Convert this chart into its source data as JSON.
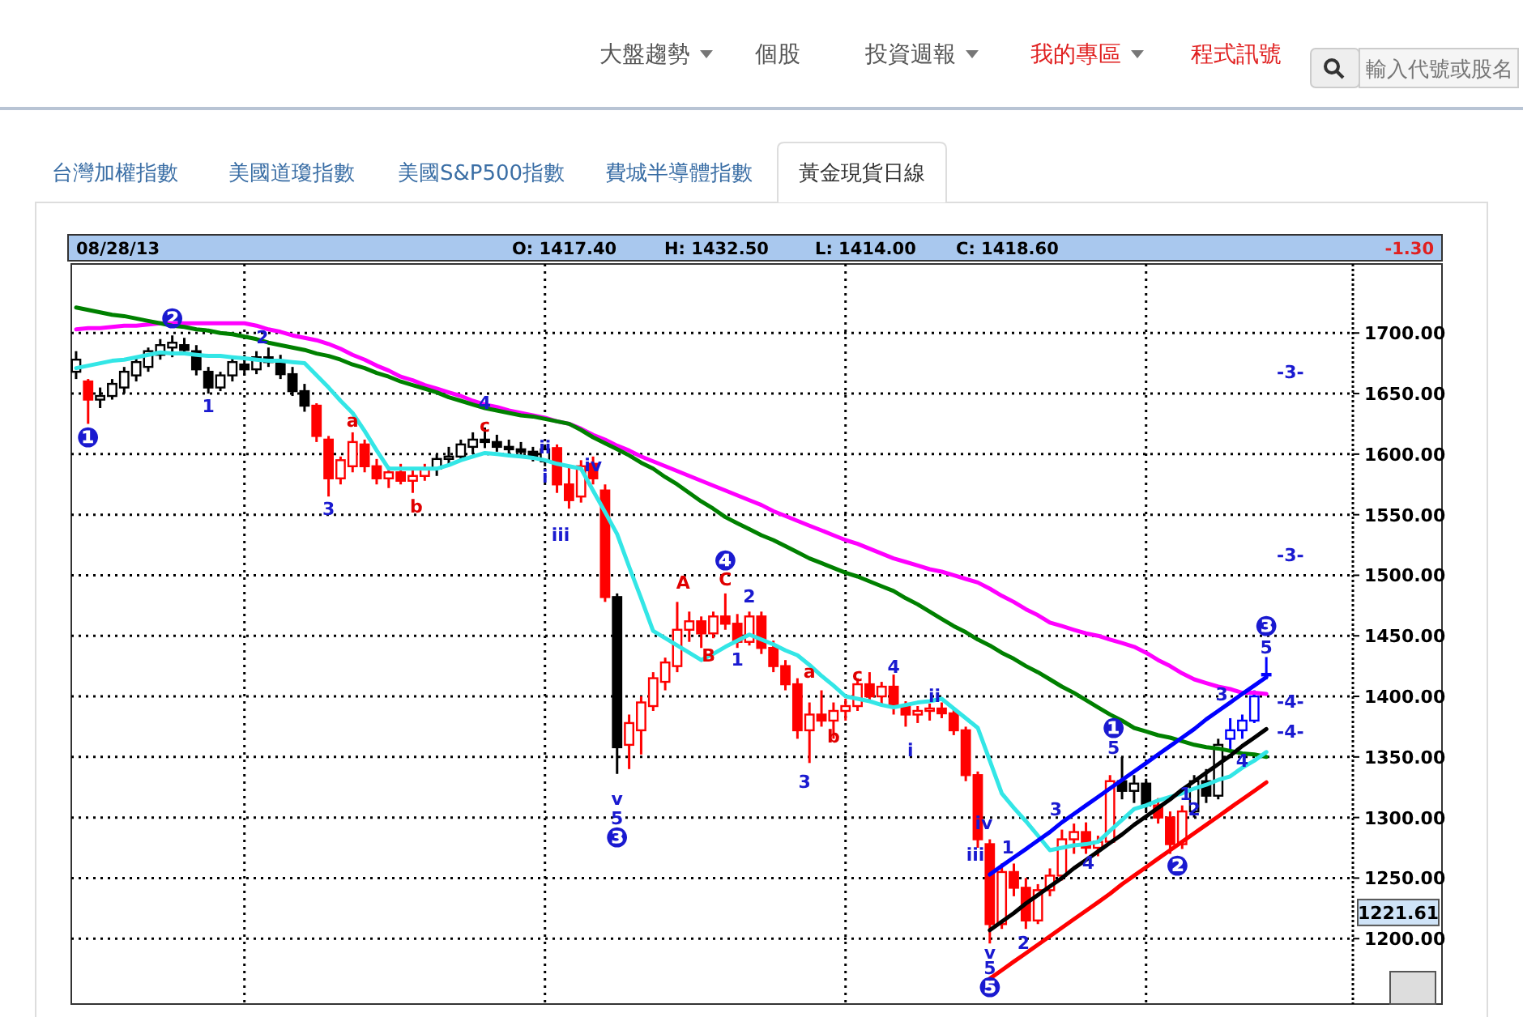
{
  "chart_data": {
    "type": "candlestick",
    "title": "黃金現貨日線",
    "annotations": [
      "大盤趨勢",
      "個股",
      "投資週報",
      "我的專區",
      "程式訊號",
      "輸入代號或股名",
      "台灣加權指數",
      "美國道瓊指數",
      "美國S&P500指數",
      "費城半導體指數",
      "08/28/13",
      "O: 1417.40",
      "H: 1432.50",
      "L: 1414.00",
      "C: 1418.60",
      "-1.30",
      "1221.61",
      "❶",
      "❷",
      "1",
      "2",
      "3",
      "a",
      "b",
      "c",
      "4",
      "i",
      "ii",
      "iii",
      "iv",
      "v",
      "5",
      "❸",
      "A",
      "B",
      "C",
      "❹",
      "1",
      "2",
      "3",
      "a",
      "b",
      "c",
      "4",
      "i",
      "ii",
      "iii",
      "iv",
      "v",
      "5",
      "❺",
      "1",
      "2",
      "3",
      "4",
      "5",
      "❶",
      "❷",
      "1",
      "2",
      "3",
      "4",
      "5",
      "❸",
      "-4-",
      "-4-",
      "-3-",
      "-3-"
    ],
    "categories": [
      null,
      null,
      null,
      null,
      null,
      null,
      null,
      null,
      null,
      null,
      null,
      null,
      null,
      null,
      null,
      null,
      null,
      null,
      null,
      null,
      null,
      null,
      null,
      null,
      null,
      null,
      null,
      null,
      null,
      null,
      null,
      null,
      null,
      null,
      null,
      null,
      null,
      null,
      null,
      null,
      null,
      null,
      null,
      null,
      null,
      null,
      null,
      null,
      null,
      null,
      null,
      null,
      null,
      null,
      null,
      null,
      null,
      null,
      null,
      null,
      null,
      null,
      null,
      null,
      null,
      null,
      null,
      null,
      null,
      null,
      null,
      null,
      null,
      null,
      null,
      null,
      null,
      null,
      null,
      null,
      null,
      null,
      null,
      null,
      null,
      null,
      null,
      null,
      null,
      null,
      null,
      null,
      null,
      null,
      null,
      null,
      null,
      null,
      null,
      null
    ],
    "ohlc": [
      [
        1668,
        1685,
        1662,
        1678
      ],
      [
        1660,
        1662,
        1625,
        1645
      ],
      [
        1645,
        1655,
        1638,
        1648
      ],
      [
        1648,
        1662,
        1645,
        1658
      ],
      [
        1655,
        1672,
        1650,
        1668
      ],
      [
        1665,
        1680,
        1660,
        1676
      ],
      [
        1672,
        1688,
        1668,
        1685
      ],
      [
        1682,
        1695,
        1678,
        1690
      ],
      [
        1688,
        1698,
        1680,
        1692
      ],
      [
        1690,
        1696,
        1682,
        1686
      ],
      [
        1685,
        1690,
        1665,
        1670
      ],
      [
        1668,
        1672,
        1650,
        1655
      ],
      [
        1655,
        1668,
        1652,
        1665
      ],
      [
        1665,
        1680,
        1660,
        1676
      ],
      [
        1674,
        1682,
        1665,
        1670
      ],
      [
        1670,
        1685,
        1666,
        1680
      ],
      [
        1680,
        1688,
        1672,
        1676
      ],
      [
        1676,
        1682,
        1662,
        1666
      ],
      [
        1666,
        1672,
        1648,
        1652
      ],
      [
        1652,
        1658,
        1635,
        1640
      ],
      [
        1640,
        1642,
        1610,
        1615
      ],
      [
        1612,
        1615,
        1565,
        1580
      ],
      [
        1580,
        1598,
        1575,
        1595
      ],
      [
        1590,
        1618,
        1585,
        1610
      ],
      [
        1608,
        1612,
        1585,
        1590
      ],
      [
        1590,
        1596,
        1575,
        1580
      ],
      [
        1580,
        1590,
        1572,
        1585
      ],
      [
        1585,
        1592,
        1575,
        1578
      ],
      [
        1578,
        1588,
        1568,
        1582
      ],
      [
        1582,
        1592,
        1578,
        1588
      ],
      [
        1588,
        1600,
        1582,
        1596
      ],
      [
        1596,
        1606,
        1590,
        1598
      ],
      [
        1598,
        1612,
        1594,
        1608
      ],
      [
        1606,
        1618,
        1600,
        1612
      ],
      [
        1612,
        1622,
        1605,
        1610
      ],
      [
        1610,
        1616,
        1602,
        1606
      ],
      [
        1606,
        1612,
        1598,
        1604
      ],
      [
        1604,
        1610,
        1598,
        1602
      ],
      [
        1602,
        1606,
        1594,
        1598
      ],
      [
        1594,
        1608,
        1590,
        1604
      ],
      [
        1605,
        1608,
        1568,
        1575
      ],
      [
        1575,
        1590,
        1555,
        1562
      ],
      [
        1565,
        1595,
        1560,
        1590
      ],
      [
        1592,
        1598,
        1575,
        1580
      ],
      [
        1570,
        1575,
        1478,
        1482
      ],
      [
        1482,
        1485,
        1336,
        1358
      ],
      [
        1360,
        1385,
        1340,
        1378
      ],
      [
        1372,
        1400,
        1352,
        1395
      ],
      [
        1392,
        1420,
        1388,
        1415
      ],
      [
        1412,
        1432,
        1405,
        1428
      ],
      [
        1425,
        1478,
        1420,
        1455
      ],
      [
        1455,
        1470,
        1445,
        1462
      ],
      [
        1462,
        1466,
        1440,
        1452
      ],
      [
        1452,
        1470,
        1448,
        1466
      ],
      [
        1466,
        1485,
        1455,
        1460
      ],
      [
        1460,
        1468,
        1440,
        1445
      ],
      [
        1445,
        1470,
        1442,
        1466
      ],
      [
        1466,
        1470,
        1435,
        1440
      ],
      [
        1440,
        1446,
        1420,
        1425
      ],
      [
        1425,
        1430,
        1405,
        1410
      ],
      [
        1410,
        1415,
        1365,
        1372
      ],
      [
        1372,
        1395,
        1345,
        1385
      ],
      [
        1385,
        1405,
        1375,
        1380
      ],
      [
        1380,
        1395,
        1365,
        1388
      ],
      [
        1388,
        1398,
        1380,
        1392
      ],
      [
        1392,
        1415,
        1388,
        1410
      ],
      [
        1410,
        1420,
        1395,
        1400
      ],
      [
        1400,
        1412,
        1392,
        1408
      ],
      [
        1408,
        1418,
        1385,
        1392
      ],
      [
        1392,
        1396,
        1375,
        1385
      ],
      [
        1385,
        1392,
        1378,
        1388
      ],
      [
        1388,
        1394,
        1380,
        1390
      ],
      [
        1390,
        1395,
        1382,
        1386
      ],
      [
        1386,
        1390,
        1368,
        1372
      ],
      [
        1372,
        1375,
        1330,
        1335
      ],
      [
        1335,
        1338,
        1275,
        1282
      ],
      [
        1278,
        1282,
        1196,
        1212
      ],
      [
        1212,
        1262,
        1208,
        1255
      ],
      [
        1255,
        1262,
        1235,
        1242
      ],
      [
        1242,
        1250,
        1208,
        1215
      ],
      [
        1215,
        1245,
        1212,
        1240
      ],
      [
        1240,
        1258,
        1235,
        1252
      ],
      [
        1252,
        1290,
        1248,
        1282
      ],
      [
        1282,
        1295,
        1270,
        1288
      ],
      [
        1288,
        1296,
        1270,
        1275
      ],
      [
        1275,
        1285,
        1268,
        1280
      ],
      [
        1280,
        1335,
        1278,
        1330
      ],
      [
        1330,
        1350,
        1315,
        1322
      ],
      [
        1322,
        1335,
        1312,
        1328
      ],
      [
        1328,
        1332,
        1305,
        1310
      ],
      [
        1310,
        1316,
        1295,
        1300
      ],
      [
        1300,
        1305,
        1270,
        1278
      ],
      [
        1278,
        1310,
        1274,
        1305
      ],
      [
        1305,
        1335,
        1300,
        1330
      ],
      [
        1330,
        1340,
        1312,
        1318
      ],
      [
        1318,
        1365,
        1315,
        1360
      ],
      [
        1365,
        1382,
        1355,
        1372
      ],
      [
        1372,
        1385,
        1365,
        1380
      ],
      [
        1380,
        1405,
        1378,
        1400
      ],
      [
        1417.4,
        1432.5,
        1414,
        1418.6
      ]
    ],
    "colors": [
      "#000000",
      "#ff0000",
      "#000000",
      "#000000",
      "#000000",
      "#000000",
      "#000000",
      "#000000",
      "#000000",
      "#000000",
      "#000000",
      "#000000",
      "#000000",
      "#000000",
      "#000000",
      "#000000",
      "#000000",
      "#000000",
      "#000000",
      "#000000",
      "#ff0000",
      "#ff0000",
      "#ff0000",
      "#ff0000",
      "#ff0000",
      "#ff0000",
      "#ff0000",
      "#ff0000",
      "#ff0000",
      "#ff0000",
      "#000000",
      "#000000",
      "#000000",
      "#000000",
      "#000000",
      "#000000",
      "#000000",
      "#000000",
      "#000000",
      "#000000",
      "#ff0000",
      "#ff0000",
      "#ff0000",
      "#ff0000",
      "#ff0000",
      "#000000",
      "#ff0000",
      "#ff0000",
      "#ff0000",
      "#ff0000",
      "#ff0000",
      "#ff0000",
      "#ff0000",
      "#ff0000",
      "#ff0000",
      "#ff0000",
      "#ff0000",
      "#ff0000",
      "#ff0000",
      "#ff0000",
      "#ff0000",
      "#ff0000",
      "#ff0000",
      "#ff0000",
      "#ff0000",
      "#ff0000",
      "#ff0000",
      "#ff0000",
      "#ff0000",
      "#ff0000",
      "#ff0000",
      "#ff0000",
      "#ff0000",
      "#ff0000",
      "#ff0000",
      "#ff0000",
      "#ff0000",
      "#ff0000",
      "#ff0000",
      "#ff0000",
      "#ff0000",
      "#ff0000",
      "#ff0000",
      "#ff0000",
      "#ff0000",
      "#ff0000",
      "#ff0000",
      "#000000",
      "#000000",
      "#000000",
      "#ff0000",
      "#ff0000",
      "#ff0000",
      "#000000",
      "#000000",
      "#000000",
      "#0000ff",
      "#0000ff",
      "#0000ff",
      "#0000ff"
    ],
    "series": [
      {
        "type": "line",
        "color": "#ff00ff",
        "values": [
          1703,
          1704,
          1704,
          1705,
          1706,
          1706,
          1707,
          1708,
          1708,
          1708,
          1708,
          1708,
          1708,
          1708,
          1708,
          1706,
          1703,
          1701,
          1698,
          1696,
          1694,
          1691,
          1687,
          1682,
          1678,
          1673,
          1669,
          1664,
          1661,
          1657,
          1654,
          1651,
          1648,
          1644,
          1641,
          1639,
          1636,
          1634,
          1632,
          1630,
          1627,
          1625,
          1621,
          1616,
          1612,
          1607,
          1603,
          1598,
          1594,
          1590,
          1586,
          1582,
          1578,
          1574,
          1570,
          1566,
          1562,
          1558,
          1553,
          1549,
          1545,
          1541,
          1537,
          1533,
          1529,
          1526,
          1522,
          1518,
          1514,
          1511,
          1508,
          1505,
          1503,
          1500,
          1497,
          1494,
          1489,
          1483,
          1478,
          1472,
          1467,
          1461,
          1458,
          1455,
          1452,
          1450,
          1447,
          1444,
          1441,
          1436,
          1430,
          1425,
          1419,
          1414,
          1411,
          1408,
          1406,
          1403,
          1403,
          1402
        ]
      },
      {
        "type": "line",
        "color": "#008000",
        "values": [
          1721,
          1719,
          1717,
          1715,
          1714,
          1712,
          1710,
          1708,
          1706,
          1705,
          1703,
          1702,
          1700,
          1699,
          1697,
          1695,
          1692,
          1690,
          1688,
          1686,
          1683,
          1681,
          1678,
          1674,
          1671,
          1667,
          1664,
          1660,
          1657,
          1654,
          1651,
          1647,
          1644,
          1641,
          1638,
          1636,
          1634,
          1632,
          1631,
          1629,
          1627,
          1625,
          1620,
          1614,
          1609,
          1604,
          1599,
          1593,
          1588,
          1581,
          1575,
          1568,
          1561,
          1555,
          1548,
          1543,
          1538,
          1533,
          1529,
          1524,
          1519,
          1514,
          1510,
          1506,
          1502,
          1499,
          1495,
          1491,
          1487,
          1481,
          1476,
          1470,
          1464,
          1458,
          1453,
          1447,
          1442,
          1436,
          1431,
          1425,
          1420,
          1414,
          1408,
          1403,
          1397,
          1391,
          1385,
          1380,
          1374,
          1371,
          1368,
          1366,
          1363,
          1360,
          1358,
          1357,
          1355,
          1353,
          1352,
          1350
        ]
      },
      {
        "type": "line",
        "color": "#33e6e6",
        "values": [
          1671,
          1673,
          1675,
          1677,
          1678,
          1680,
          1682,
          1684,
          1683,
          1683,
          1682,
          1681,
          1681,
          1680,
          1679,
          1678,
          1677,
          1677,
          1676,
          1675,
          1665,
          1655,
          1644,
          1634,
          1619,
          1603,
          1588,
          1588,
          1588,
          1588,
          1588,
          1591,
          1595,
          1598,
          1601,
          1600,
          1599,
          1598,
          1597,
          1595,
          1592,
          1590,
          1588,
          1570,
          1552,
          1534,
          1507,
          1481,
          1454,
          1448,
          1442,
          1436,
          1430,
          1435,
          1441,
          1446,
          1451,
          1447,
          1443,
          1438,
          1434,
          1426,
          1417,
          1409,
          1400,
          1398,
          1396,
          1393,
          1391,
          1393,
          1395,
          1396,
          1398,
          1390,
          1382,
          1374,
          1347,
          1320,
          1308,
          1297,
          1285,
          1273,
          1275,
          1277,
          1278,
          1280,
          1289,
          1298,
          1307,
          1310,
          1314,
          1317,
          1320,
          1324,
          1327,
          1331,
          1334,
          1341,
          1347,
          1354
        ]
      },
      {
        "type": "line",
        "color": "#0000ff",
        "values": [
          null,
          null,
          null,
          null,
          null,
          null,
          null,
          null,
          null,
          null,
          null,
          null,
          null,
          null,
          null,
          null,
          null,
          null,
          null,
          null,
          null,
          null,
          null,
          null,
          null,
          null,
          null,
          null,
          null,
          null,
          null,
          null,
          null,
          null,
          null,
          null,
          null,
          null,
          null,
          null,
          null,
          null,
          null,
          null,
          null,
          null,
          null,
          null,
          null,
          null,
          null,
          null,
          null,
          null,
          null,
          null,
          null,
          null,
          null,
          null,
          null,
          null,
          null,
          null,
          null,
          null,
          null,
          null,
          null,
          null,
          null,
          null,
          null,
          null,
          null,
          null,
          1253,
          1260,
          1267,
          1274,
          1281,
          1288,
          1296,
          1303,
          1310,
          1317,
          1324,
          1331,
          1338,
          1345,
          1352,
          1359,
          1366,
          1373,
          1381,
          1388,
          1395,
          1402,
          1409,
          1416
        ]
      },
      {
        "type": "line",
        "color": "#000000",
        "values": [
          null,
          null,
          null,
          null,
          null,
          null,
          null,
          null,
          null,
          null,
          null,
          null,
          null,
          null,
          null,
          null,
          null,
          null,
          null,
          null,
          null,
          null,
          null,
          null,
          null,
          null,
          null,
          null,
          null,
          null,
          null,
          null,
          null,
          null,
          null,
          null,
          null,
          null,
          null,
          null,
          null,
          null,
          null,
          null,
          null,
          null,
          null,
          null,
          null,
          null,
          null,
          null,
          null,
          null,
          null,
          null,
          null,
          null,
          null,
          null,
          null,
          null,
          null,
          null,
          null,
          null,
          null,
          null,
          null,
          null,
          null,
          null,
          null,
          null,
          null,
          null,
          1207,
          1214,
          1221,
          1229,
          1236,
          1243,
          1250,
          1258,
          1265,
          1272,
          1279,
          1286,
          1294,
          1301,
          1308,
          1315,
          1323,
          1330,
          1337,
          1344,
          1351,
          1359,
          1366,
          1373
        ]
      },
      {
        "type": "line",
        "color": "#ff0000",
        "values": [
          null,
          null,
          null,
          null,
          null,
          null,
          null,
          null,
          null,
          null,
          null,
          null,
          null,
          null,
          null,
          null,
          null,
          null,
          null,
          null,
          null,
          null,
          null,
          null,
          null,
          null,
          null,
          null,
          null,
          null,
          null,
          null,
          null,
          null,
          null,
          null,
          null,
          null,
          null,
          null,
          null,
          null,
          null,
          null,
          null,
          null,
          null,
          null,
          null,
          null,
          null,
          null,
          null,
          null,
          null,
          null,
          null,
          null,
          null,
          null,
          null,
          null,
          null,
          null,
          null,
          null,
          null,
          null,
          null,
          null,
          null,
          null,
          null,
          null,
          null,
          null,
          1167,
          1174,
          1181,
          1188,
          1195,
          1202,
          1209,
          1216,
          1223,
          1230,
          1237,
          1245,
          1252,
          1259,
          1266,
          1273,
          1280,
          1287,
          1294,
          1301,
          1308,
          1315,
          1322,
          1329
        ]
      }
    ],
    "ylim": [
      1146,
      1757
    ],
    "yticks": [
      {
        "value": 1200,
        "label": "1200.00"
      },
      {
        "value": 1250,
        "label": "1250.00"
      },
      {
        "value": 1300,
        "label": "1300.00"
      },
      {
        "value": 1350,
        "label": "1350.00"
      },
      {
        "value": 1400,
        "label": "1400.00"
      },
      {
        "value": 1450,
        "label": "1450.00"
      },
      {
        "value": 1500,
        "label": "1500.00"
      },
      {
        "value": 1550,
        "label": "1550.00"
      },
      {
        "value": 1600,
        "label": "1600.00"
      },
      {
        "value": 1650,
        "label": "1650.00"
      },
      {
        "value": 1700,
        "label": "1700.00"
      }
    ],
    "grid": true
  }
}
